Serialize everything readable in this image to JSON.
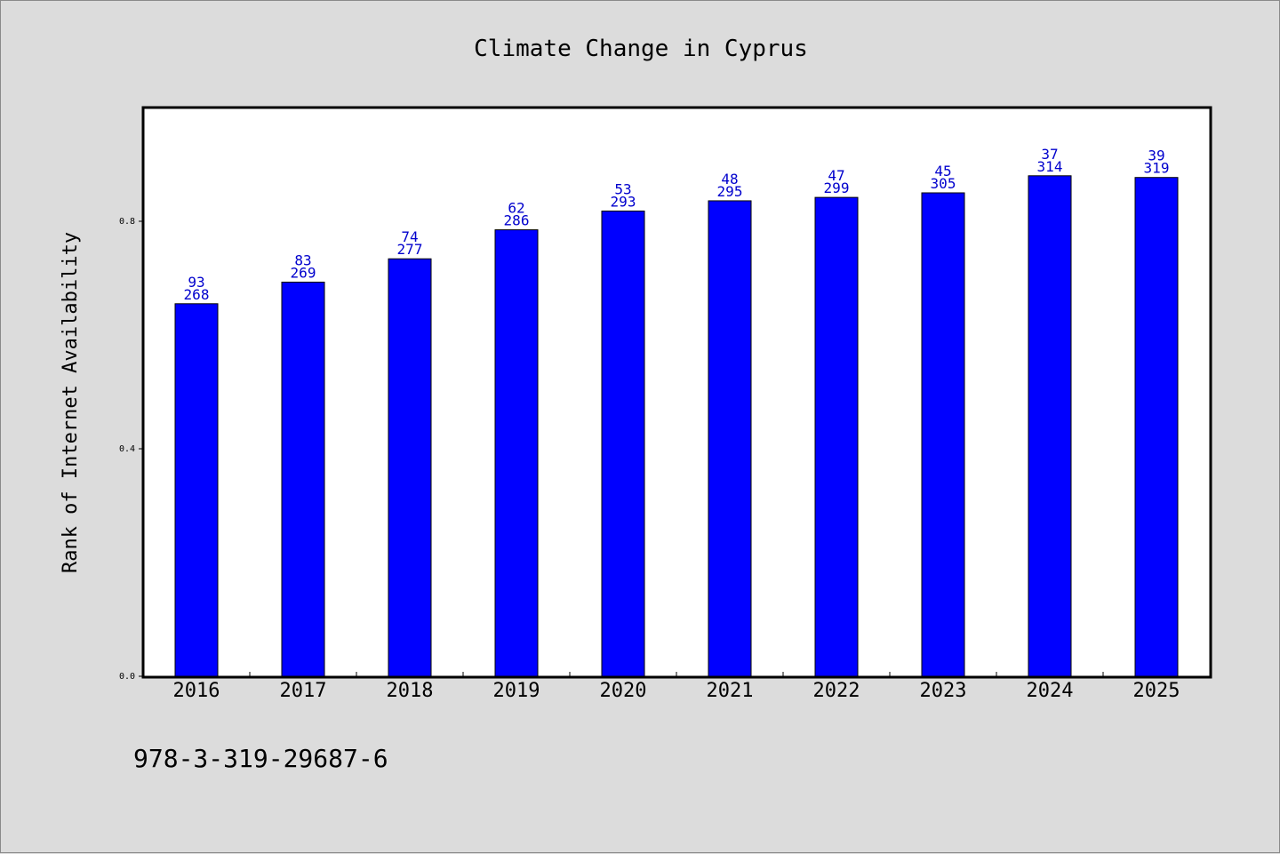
{
  "chart_data": {
    "type": "bar",
    "title": "Climate Change in Cyprus",
    "ylabel": "Rank of Internet Availability",
    "xlabel": "",
    "categories": [
      "2016",
      "2017",
      "2018",
      "2019",
      "2020",
      "2021",
      "2022",
      "2023",
      "2024",
      "2025"
    ],
    "values": [
      0.655,
      0.693,
      0.734,
      0.785,
      0.818,
      0.836,
      0.842,
      0.85,
      0.88,
      0.877
    ],
    "label_top": [
      "93",
      "83",
      "74",
      "62",
      "53",
      "48",
      "47",
      "45",
      "37",
      "39"
    ],
    "label_bottom": [
      "268",
      "269",
      "277",
      "286",
      "293",
      "295",
      "299",
      "305",
      "314",
      "319"
    ],
    "ylim": [
      0.0,
      1.0
    ],
    "yticks": [
      0.0,
      0.4,
      0.8
    ],
    "ytick_labels": [
      "0.0",
      "0.4",
      "0.8"
    ],
    "grid": false,
    "colors": {
      "bar": "#0000ff",
      "bar_edge": "#000000",
      "value_label": "#0000cd",
      "plot_bg": "#ffffff",
      "figure_bg": "#dcdcdc"
    }
  },
  "footer": {
    "isbn": "978-3-319-29687-6"
  }
}
